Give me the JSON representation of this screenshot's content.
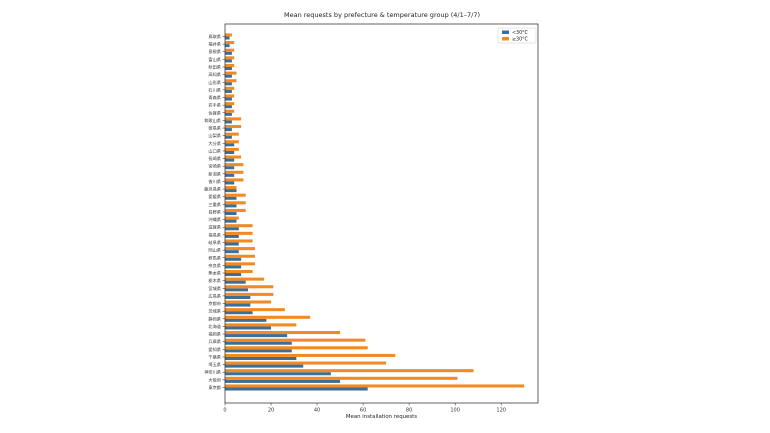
{
  "chart_data": {
    "type": "bar",
    "orientation": "horizontal",
    "title": "Mean requests by prefecture & temperature group (4/1–7/7)",
    "xlabel": "Mean installation requests",
    "ylabel": "",
    "xlim": [
      0,
      136
    ],
    "xticks": [
      0,
      20,
      40,
      60,
      80,
      100,
      120
    ],
    "legend_position": "top-right",
    "grid": false,
    "categories": [
      "東京都",
      "大阪府",
      "神奈川県",
      "埼玉県",
      "千葉県",
      "愛知県",
      "兵庫県",
      "福岡県",
      "北海道",
      "静岡県",
      "茨城県",
      "京都府",
      "広島県",
      "宮城県",
      "栃木県",
      "熊本県",
      "奈良県",
      "群馬県",
      "岡山県",
      "岐阜県",
      "福島県",
      "滋賀県",
      "沖縄県",
      "長野県",
      "三重県",
      "愛媛県",
      "鹿児島県",
      "香川県",
      "新潟県",
      "宮崎県",
      "長崎県",
      "山口県",
      "大分県",
      "山梨県",
      "徳島県",
      "和歌山県",
      "佐賀県",
      "岩手県",
      "青森県",
      "石川県",
      "山形県",
      "高知県",
      "秋田県",
      "富山県",
      "島根県",
      "福井県",
      "鳥取県"
    ],
    "series": [
      {
        "name": "<30°C",
        "color": "#3d6e95",
        "values": [
          62,
          50,
          46,
          34,
          31,
          29,
          29,
          27,
          20,
          18,
          12,
          11,
          11,
          10,
          9,
          7,
          7,
          7,
          6,
          6,
          6,
          6,
          5,
          5,
          5,
          5,
          5,
          4,
          4,
          4,
          4,
          4,
          4,
          3,
          3,
          3,
          3,
          3,
          3,
          3,
          3,
          3,
          3,
          3,
          3,
          2,
          2
        ]
      },
      {
        "name": "≥30°C",
        "color": "#f08a24",
        "values": [
          130,
          101,
          108,
          70,
          74,
          62,
          61,
          50,
          31,
          37,
          26,
          20,
          21,
          21,
          17,
          12,
          13,
          13,
          13,
          12,
          12,
          12,
          6,
          9,
          9,
          9,
          5,
          8,
          8,
          8,
          7,
          6,
          6,
          6,
          7,
          7,
          4,
          4,
          4,
          4,
          5,
          5,
          4,
          4,
          4,
          4,
          3
        ]
      }
    ]
  }
}
